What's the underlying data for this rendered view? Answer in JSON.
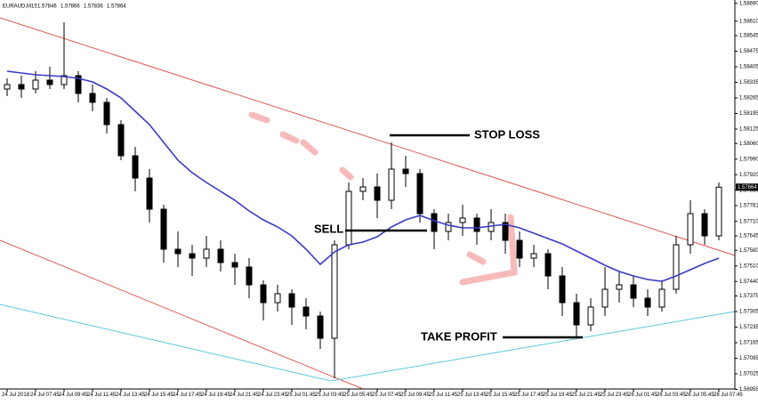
{
  "chart_data": {
    "type": "candlestick",
    "symbol": "EURAUD,M15",
    "ohlc": [
      1.57846,
      1.57866,
      1.57836,
      1.57864
    ],
    "bull_color": "#ffffff",
    "bear_color": "#000000",
    "ylim": [
      1.56955,
      1.58705
    ],
    "yticks": [
      {
        "value": 1.5869,
        "label": "1.58690"
      },
      {
        "value": 1.5861,
        "label": "1.58610"
      },
      1.58545,
      1.58475,
      1.58405,
      1.58335,
      1.58265,
      1.58195,
      1.58125,
      {
        "value": 1.5806,
        "label": "1.58060"
      },
      {
        "value": 1.5799,
        "label": "1.57990"
      },
      {
        "value": 1.5792,
        "label": "1.57920"
      },
      {
        "value": 1.5785,
        "label": "1.57850"
      },
      1.57781,
      {
        "value": 1.5771,
        "label": "1.57710"
      },
      1.57645,
      {
        "value": 1.5758,
        "label": "1.57580"
      },
      {
        "value": 1.5751,
        "label": "1.57510"
      },
      {
        "value": 1.5744,
        "label": "1.57440"
      },
      1.57375,
      1.57305,
      1.57235,
      1.57165,
      1.57095,
      1.57025,
      1.56955
    ],
    "xtick_labels": [
      "24 Jul 2018",
      "24 Jul 07:45",
      "24 Jul 09:45",
      "24 Jul 11:45",
      "24 Jul 13:45",
      "24 Jul 15:45",
      "24 Jul 17:45",
      "24 Jul 19:45",
      "24 Jul 21:45",
      "24 Jul 23:45",
      "25 Jul 01:45",
      "25 Jul 03:45",
      "25 Jul 05:45",
      "25 Jul 07:45",
      "25 Jul 09:45",
      "25 Jul 11:45",
      "25 Jul 13:45",
      "25 Jul 15:45",
      "25 Jul 17:45",
      "25 Jul 19:45",
      "25 Jul 21:45",
      "25 Jul 23:45",
      "26 Jul 01:45",
      "26 Jul 03:45",
      "26 Jul 05:45",
      "26 Jul 07:45"
    ],
    "candles": [
      [
        1.58305,
        1.58353,
        1.58273,
        1.58325
      ],
      [
        1.58325,
        1.58365,
        1.58265,
        1.58305
      ],
      [
        1.58305,
        1.58385,
        1.58285,
        1.58345
      ],
      [
        1.58345,
        1.58405,
        1.58305,
        1.58325
      ],
      [
        1.58325,
        1.58605,
        1.58305,
        1.58365
      ],
      [
        1.58365,
        1.58385,
        1.58245,
        1.58285
      ],
      [
        1.58285,
        1.58325,
        1.58205,
        1.58245
      ],
      [
        1.58245,
        1.58265,
        1.58105,
        1.58145
      ],
      [
        1.58145,
        1.58165,
        1.57985,
        1.58005
      ],
      [
        1.58005,
        1.58045,
        1.57845,
        1.57905
      ],
      [
        1.57905,
        1.57945,
        1.57705,
        1.57765
      ],
      [
        1.57765,
        1.57785,
        1.57525,
        1.57585
      ],
      [
        1.57585,
        1.57665,
        1.57505,
        1.57565
      ],
      [
        1.57565,
        1.57605,
        1.57465,
        1.57545
      ],
      [
        1.57545,
        1.57645,
        1.57505,
        1.57585
      ],
      [
        1.57585,
        1.57625,
        1.57485,
        1.57525
      ],
      [
        1.57525,
        1.57565,
        1.57425,
        1.57505
      ],
      [
        1.57505,
        1.57545,
        1.57365,
        1.57425
      ],
      [
        1.57425,
        1.57445,
        1.57265,
        1.57345
      ],
      [
        1.57345,
        1.57425,
        1.57305,
        1.57385
      ],
      [
        1.57385,
        1.57405,
        1.57245,
        1.57325
      ],
      [
        1.57325,
        1.57365,
        1.57225,
        1.57285
      ],
      [
        1.57285,
        1.57305,
        1.57137,
        1.57185
      ],
      [
        1.57185,
        1.57625,
        1.57005,
        1.57605
      ],
      [
        1.57605,
        1.57885,
        1.57585,
        1.57845
      ],
      [
        1.57845,
        1.57905,
        1.57805,
        1.57865
      ],
      [
        1.57865,
        1.57925,
        1.57725,
        1.57805
      ],
      [
        1.57805,
        1.58065,
        1.57765,
        1.57945
      ],
      [
        1.57945,
        1.58005,
        1.57865,
        1.57925
      ],
      [
        1.57925,
        1.57945,
        1.57705,
        1.57745
      ],
      [
        1.57745,
        1.57765,
        1.57585,
        1.57665
      ],
      [
        1.57665,
        1.57745,
        1.57625,
        1.57705
      ],
      [
        1.57705,
        1.57785,
        1.57645,
        1.57725
      ],
      [
        1.57725,
        1.57745,
        1.57605,
        1.57665
      ],
      [
        1.57665,
        1.57765,
        1.57625,
        1.57705
      ],
      [
        1.57705,
        1.57745,
        1.57565,
        1.57625
      ],
      [
        1.57625,
        1.57665,
        1.57505,
        1.57545
      ],
      [
        1.57545,
        1.57605,
        1.57505,
        1.57565
      ],
      [
        1.57565,
        1.57585,
        1.57405,
        1.57465
      ],
      [
        1.57465,
        1.57505,
        1.57285,
        1.57345
      ],
      [
        1.57345,
        1.57385,
        1.57193,
        1.57245
      ],
      [
        1.57245,
        1.57365,
        1.57217,
        1.57325
      ],
      [
        1.57325,
        1.57505,
        1.57285,
        1.57405
      ],
      [
        1.57405,
        1.57485,
        1.57345,
        1.57425
      ],
      [
        1.57425,
        1.57465,
        1.57325,
        1.57365
      ],
      [
        1.57365,
        1.57405,
        1.57285,
        1.57325
      ],
      [
        1.57325,
        1.57445,
        1.57305,
        1.57405
      ],
      [
        1.57405,
        1.57645,
        1.57385,
        1.57605
      ],
      [
        1.57605,
        1.57805,
        1.57565,
        1.57745
      ],
      [
        1.57745,
        1.57765,
        1.57605,
        1.57645
      ],
      [
        1.57645,
        1.57885,
        1.57625,
        1.57864
      ]
    ],
    "ma": {
      "color": "#3a3ac8",
      "values": [
        1.58385,
        1.58377,
        1.58369,
        1.58365,
        1.58361,
        1.58353,
        1.58337,
        1.58305,
        1.58265,
        1.58205,
        1.58145,
        1.58065,
        1.57985,
        1.57929,
        1.57885,
        1.57845,
        1.57805,
        1.57757,
        1.57717,
        1.57685,
        1.57645,
        1.57585,
        1.57517,
        1.57573,
        1.57605,
        1.57617,
        1.57641,
        1.57685,
        1.57717,
        1.57737,
        1.57713,
        1.57693,
        1.57681,
        1.57681,
        1.57689,
        1.57697,
        1.57681,
        1.57657,
        1.57633,
        1.57609,
        1.57577,
        1.57545,
        1.57513,
        1.57485,
        1.57465,
        1.57449,
        1.57441,
        1.57465,
        1.57493,
        1.57521,
        1.57545
      ]
    },
    "annotations": {
      "stop_loss": "STOP LOSS",
      "sell": "SELL",
      "take_profit": "TAKE PROFIT"
    }
  }
}
